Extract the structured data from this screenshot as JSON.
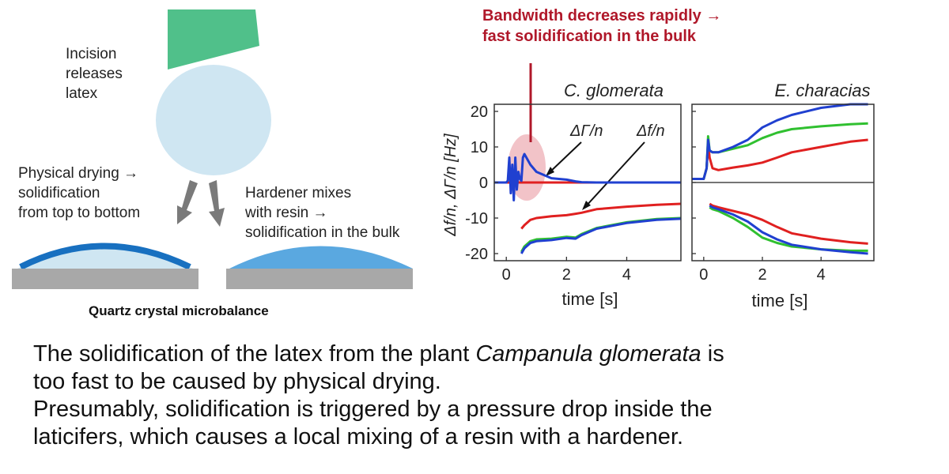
{
  "left": {
    "incision_lines": [
      "Incision",
      "releases",
      "latex"
    ],
    "physical_lines": [
      "Physical drying →",
      "solidification",
      "from top to bottom"
    ],
    "hardener_lines": [
      "Hardener mixes",
      "with resin →",
      "solidification in the bulk"
    ],
    "qcm_label": "Quartz crystal microbalance"
  },
  "annotation": {
    "lines": [
      "Bandwidth decreases rapidly →",
      "fast solidification in the bulk"
    ]
  },
  "chart_data": [
    {
      "type": "line",
      "title": "C. glomerata",
      "xlabel": "time [s]",
      "ylabel": "Δf/n, ΔΓ/n [Hz]",
      "xlim": [
        -0.4,
        5.8
      ],
      "ylim": [
        -22,
        22
      ],
      "xticks": [
        0,
        2,
        4
      ],
      "yticks": [
        20,
        10,
        0,
        -10,
        -20
      ],
      "curve_labels": [
        "ΔΓ/n",
        "Δf/n"
      ],
      "series": [
        {
          "color": "#e02020",
          "x": [
            0,
            0.5,
            0.55,
            0.6,
            0.65,
            0.75,
            1.0,
            1.5,
            2.0,
            2.3,
            2.5,
            3.0,
            4.0,
            5.0,
            5.8
          ],
          "y": [
            0,
            0,
            0,
            0,
            0,
            0,
            0,
            0,
            0,
            0,
            0,
            0,
            0,
            0,
            0
          ]
        },
        {
          "color": "#e02020",
          "x": [
            0.5,
            0.6,
            0.8,
            1.0,
            1.5,
            2.0,
            2.3,
            2.5,
            3.0,
            4.0,
            5.0,
            5.8
          ],
          "y": [
            -13,
            -12,
            -10.5,
            -10,
            -9.5,
            -9.2,
            -8.8,
            -8.5,
            -7.5,
            -6.8,
            -6.3,
            -6
          ]
        },
        {
          "color": "#30c030",
          "x": [
            0.5,
            0.6,
            0.8,
            1.0,
            1.5,
            2.0,
            2.3,
            2.5,
            3.0,
            4.0,
            5.0,
            5.8
          ],
          "y": [
            -19.5,
            -18,
            -16.5,
            -16,
            -15.8,
            -15.3,
            -15.5,
            -14.5,
            -12.8,
            -11.2,
            -10.3,
            -10
          ]
        },
        {
          "color": "#2040d0",
          "x": [
            0.5,
            0.6,
            0.8,
            1.0,
            1.5,
            2.0,
            2.3,
            2.5,
            3.0,
            4.0,
            5.0,
            5.8
          ],
          "y": [
            -20,
            -18.5,
            -17,
            -16.5,
            -16.2,
            -15.6,
            -15.8,
            -14.8,
            -13,
            -11.4,
            -10.5,
            -10.2
          ]
        },
        {
          "color": "#2040d0",
          "x": [
            -0.4,
            0,
            0.05,
            0.1,
            0.15,
            0.2,
            0.25,
            0.3,
            0.35,
            0.4,
            0.45,
            0.5,
            0.55,
            0.6,
            0.8,
            1.0,
            1.5,
            2.0,
            2.3,
            2.5,
            3.0,
            4.0,
            5.0,
            5.8
          ],
          "y": [
            0,
            0,
            0.5,
            7,
            -3,
            5,
            -5,
            7,
            -2,
            3,
            1,
            0.5,
            7,
            8,
            5,
            3,
            1.2,
            0.8,
            0.3,
            0.1,
            0,
            0,
            0,
            0
          ]
        }
      ]
    },
    {
      "type": "line",
      "title": "E. characias",
      "xlabel": "time [s]",
      "xlim": [
        -0.4,
        5.8
      ],
      "ylim": [
        -22,
        22
      ],
      "xticks": [
        0,
        2,
        4
      ],
      "series": [
        {
          "color": "#e02020",
          "x": [
            -0.4,
            0,
            0.1,
            0.15,
            0.2,
            0.3,
            0.5,
            1.0,
            1.5,
            2.0,
            2.5,
            3.0,
            4.0,
            5.0,
            5.6
          ],
          "y": [
            1,
            1,
            4,
            11,
            7,
            4,
            3.5,
            4.2,
            4.8,
            5.6,
            7,
            8.5,
            10,
            11.5,
            12
          ]
        },
        {
          "color": "#30c030",
          "x": [
            -0.4,
            0,
            0.1,
            0.15,
            0.2,
            0.3,
            0.5,
            1.0,
            1.5,
            2.0,
            2.5,
            3.0,
            4.0,
            5.0,
            5.6
          ],
          "y": [
            1,
            1,
            4,
            13,
            9,
            8.5,
            8.5,
            9.5,
            10.5,
            12.5,
            14,
            15,
            15.8,
            16.4,
            16.6
          ]
        },
        {
          "color": "#2040d0",
          "x": [
            -0.4,
            0,
            0.1,
            0.15,
            0.2,
            0.3,
            0.5,
            1.0,
            1.5,
            2.0,
            2.5,
            3.0,
            4.0,
            5.0,
            5.6
          ],
          "y": [
            1,
            1,
            4,
            12,
            9,
            8.5,
            8.5,
            10,
            12,
            15.5,
            17.5,
            19,
            21,
            22,
            22
          ]
        },
        {
          "color": "#e02020",
          "x": [
            0.2,
            0.3,
            0.5,
            1.0,
            1.5,
            2.0,
            2.5,
            3.0,
            4.0,
            5.0,
            5.6
          ],
          "y": [
            -6,
            -6.5,
            -7,
            -8,
            -9,
            -10.5,
            -12.5,
            -14.3,
            -15.8,
            -16.8,
            -17.2
          ]
        },
        {
          "color": "#30c030",
          "x": [
            0.2,
            0.3,
            0.5,
            1.0,
            1.5,
            2.0,
            2.5,
            3.0,
            4.0,
            5.0,
            5.6
          ],
          "y": [
            -7,
            -7.5,
            -8,
            -10,
            -12.5,
            -15.5,
            -17,
            -18,
            -18.8,
            -19.2,
            -19.2
          ]
        },
        {
          "color": "#2040d0",
          "x": [
            0.2,
            0.3,
            0.5,
            1.0,
            1.5,
            2.0,
            2.5,
            3.0,
            4.0,
            5.0,
            5.6
          ],
          "y": [
            -6.5,
            -7,
            -7.5,
            -9,
            -11,
            -14,
            -16,
            -17.5,
            -18.8,
            -19.6,
            -20
          ]
        }
      ]
    }
  ],
  "caption": {
    "line1_pre": "The solidification of the latex from the plant ",
    "line1_em": "Campanula glomerata",
    "line1_post": " is",
    "line2": "too fast to be caused by physical drying.",
    "line3": "Presumably, solidification is triggered by a pressure drop inside the",
    "line4": "laticifers, which causes a local mixing of a resin with a hardener."
  }
}
